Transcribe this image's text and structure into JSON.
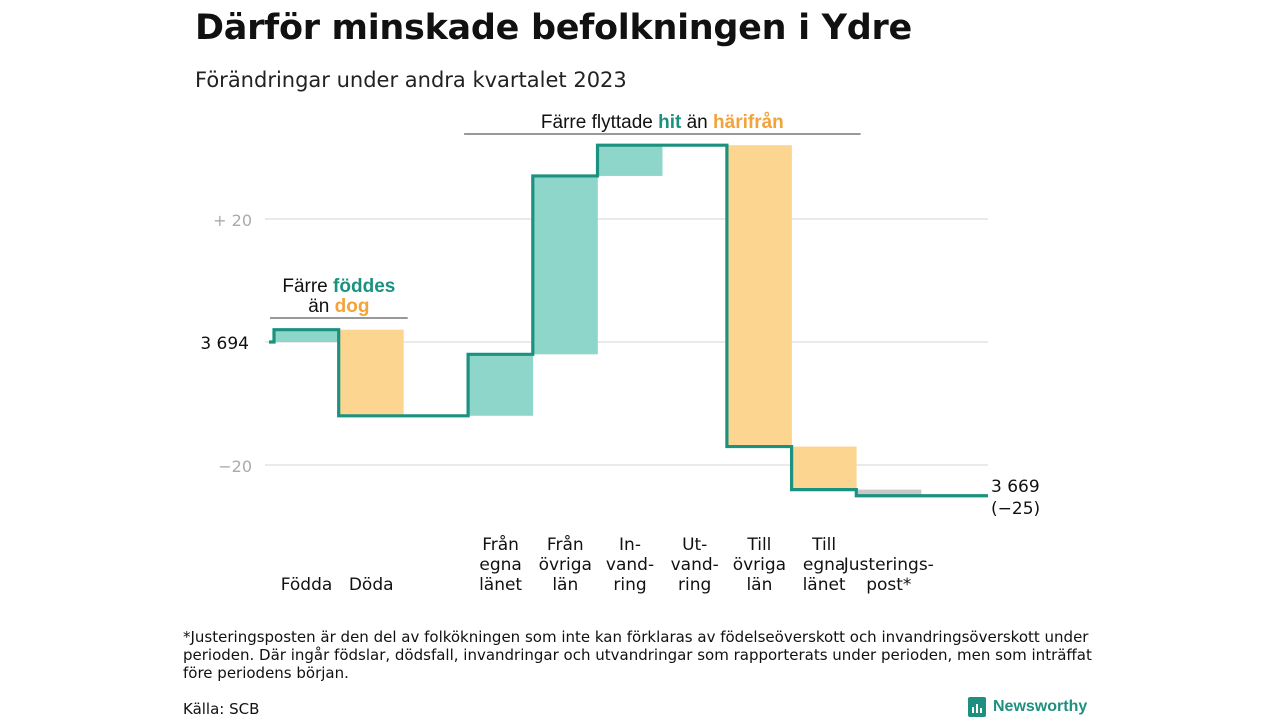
{
  "title": "Därför minskade befolkningen i Ydre",
  "subtitle": "Förändringar under andra kvartalet 2023",
  "footnote": "*Justeringsposten är den del av folkökningen som inte kan förklaras av födelseöverskott och invandringsöverskott under perioden. Där ingår födslar, dödsfall, invandringar och utvandringar som rapporterats under perioden, men som inträffat före periodens början.",
  "source": "Källa: SCB",
  "brand": "Newsworthy",
  "colors": {
    "inflow": "#8fd6ca",
    "outflow": "#fcd690",
    "adjust": "#c8c8c8",
    "line": "#1b9280",
    "hit": "#1b9280",
    "harifran": "#f2a33a",
    "grid": "#dddddd"
  },
  "chart_data": {
    "type": "waterfall",
    "start_value": 3694,
    "start_label": "3  694",
    "end_value": 3669,
    "end_label": [
      "3 669",
      "(−25)"
    ],
    "y_axis": {
      "ticks": [
        {
          "value": 20,
          "label": "+  20"
        },
        {
          "value": -20,
          "label": "−20"
        }
      ],
      "range": [
        -30,
        40
      ],
      "unit": "change from 3 694"
    },
    "steps": [
      {
        "name": "Födda",
        "label": [
          "Födda"
        ],
        "change": 2,
        "kind": "inflow"
      },
      {
        "name": "Döda",
        "label": [
          "Döda"
        ],
        "change": -14,
        "kind": "outflow"
      },
      {
        "name": "Från egna länet",
        "label": [
          "Från",
          "egna",
          "länet"
        ],
        "change": 10,
        "kind": "inflow"
      },
      {
        "name": "Från övriga län",
        "label": [
          "Från",
          "övriga",
          "län"
        ],
        "change": 29,
        "kind": "inflow"
      },
      {
        "name": "Invandring",
        "label": [
          "In-",
          "vand-",
          "ring"
        ],
        "change": 5,
        "kind": "inflow"
      },
      {
        "name": "Utvandring",
        "label": [
          "Ut-",
          "vand-",
          "ring"
        ],
        "change": 0,
        "kind": "outflow"
      },
      {
        "name": "Till övriga län",
        "label": [
          "Till",
          "övriga",
          "län"
        ],
        "change": -49,
        "kind": "outflow"
      },
      {
        "name": "Till egna länet",
        "label": [
          "Till",
          "egna",
          "länet"
        ],
        "change": -7,
        "kind": "outflow"
      },
      {
        "name": "Justeringspost*",
        "label": [
          "Justerings-",
          "post*"
        ],
        "change": -1,
        "kind": "adjust"
      }
    ],
    "annotations": [
      {
        "steps": [
          0,
          1
        ],
        "lines": [
          [
            {
              "t": "Färre ",
              "c": "text"
            },
            {
              "t": "föddes",
              "c": "hit"
            }
          ],
          [
            {
              "t": "än ",
              "c": "text"
            },
            {
              "t": "dog",
              "c": "harifran"
            }
          ]
        ]
      },
      {
        "steps": [
          2,
          7
        ],
        "lines": [
          [
            {
              "t": "Färre flyttade ",
              "c": "text"
            },
            {
              "t": "hit",
              "c": "hit"
            },
            {
              "t": "  än ",
              "c": "text"
            },
            {
              "t": "härifrån",
              "c": "harifran"
            }
          ]
        ]
      }
    ]
  }
}
